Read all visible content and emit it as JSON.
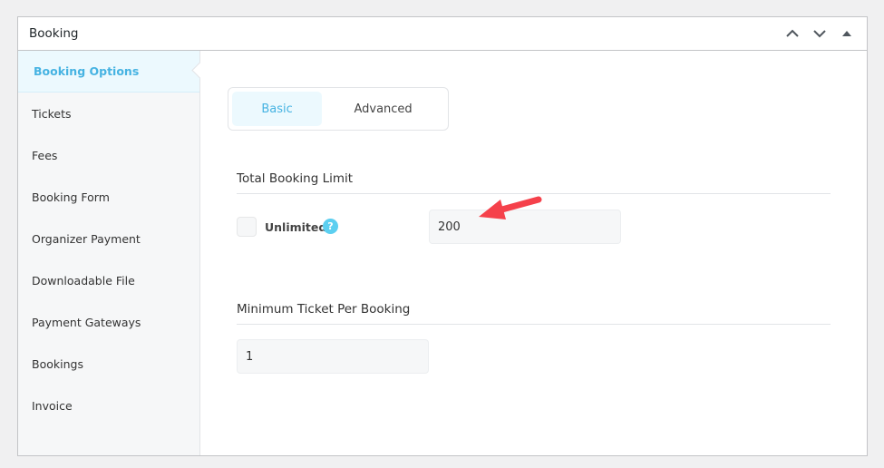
{
  "header": {
    "title": "Booking"
  },
  "sidebar": {
    "items": [
      {
        "label": "Booking Options"
      },
      {
        "label": "Tickets"
      },
      {
        "label": "Fees"
      },
      {
        "label": "Booking Form"
      },
      {
        "label": "Organizer Payment"
      },
      {
        "label": "Downloadable File"
      },
      {
        "label": "Payment Gateways"
      },
      {
        "label": "Bookings"
      },
      {
        "label": "Invoice"
      }
    ]
  },
  "tabs": [
    {
      "label": "Basic"
    },
    {
      "label": "Advanced"
    }
  ],
  "total_limit": {
    "title": "Total Booking Limit",
    "unlimited_label": "Unlimited",
    "help": "?",
    "value": "200",
    "unlimited_checked": false
  },
  "min_ticket": {
    "title": "Minimum Ticket Per Booking",
    "value": "1"
  },
  "colors": {
    "accent": "#46b3e2",
    "arrow": "#f5414b"
  }
}
